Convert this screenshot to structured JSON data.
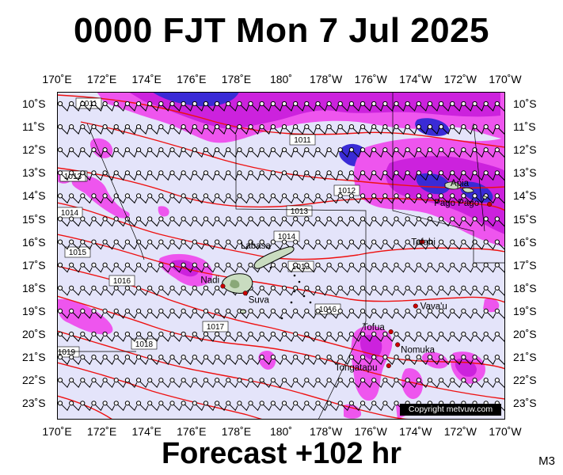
{
  "header": {
    "title": "0000 FJT Mon 7 Jul 2025"
  },
  "footer": {
    "forecast": "Forecast +102 hr",
    "model_code": "M3"
  },
  "copyright": "Copyright metvuw.com",
  "map": {
    "lon_labels": [
      "170˚E",
      "172˚E",
      "174˚E",
      "176˚E",
      "178˚E",
      "180˚",
      "178˚W",
      "176˚W",
      "174˚W",
      "172˚W",
      "170˚W"
    ],
    "lat_labels": [
      "10˚S",
      "11˚S",
      "12˚S",
      "13˚S",
      "14˚S",
      "15˚S",
      "16˚S",
      "17˚S",
      "18˚S",
      "19˚S",
      "20˚S",
      "21˚S",
      "22˚S",
      "23˚S"
    ],
    "places": [
      {
        "name": "Labasa",
        "lon": 179.4,
        "lat": -16.4
      },
      {
        "name": "Nadi",
        "lon": 177.4,
        "lat": -17.8
      },
      {
        "name": "Suva",
        "lon": 178.4,
        "lat": -18.1
      },
      {
        "name": "Apia",
        "lon": -171.8,
        "lat": -13.8
      },
      {
        "name": "Pago Pago",
        "lon": -170.7,
        "lat": -14.3
      },
      {
        "name": "Tafahi",
        "lon": -173.7,
        "lat": -15.9
      },
      {
        "name": "Vava'u",
        "lon": -174.0,
        "lat": -18.65
      },
      {
        "name": "Tofua",
        "lon": -175.1,
        "lat": -19.75
      },
      {
        "name": "Nomuka",
        "lon": -174.8,
        "lat": -20.3
      },
      {
        "name": "Tongatapu",
        "lon": -175.2,
        "lat": -21.2
      }
    ],
    "isobar_labels": [
      "1011",
      "1011",
      "1012",
      "1013",
      "1012",
      "1013",
      "1014",
      "1014",
      "1015",
      "1015",
      "1016",
      "1016",
      "1017",
      "1018",
      "1019"
    ],
    "colors": {
      "background": "#e4e4fa",
      "rain_light": "#ee55ee",
      "rain_heavy": "#cc22dd",
      "rain_extreme": "#3a2bd6",
      "isobar": "#ee1111",
      "place_marker": "#cc0000"
    }
  }
}
